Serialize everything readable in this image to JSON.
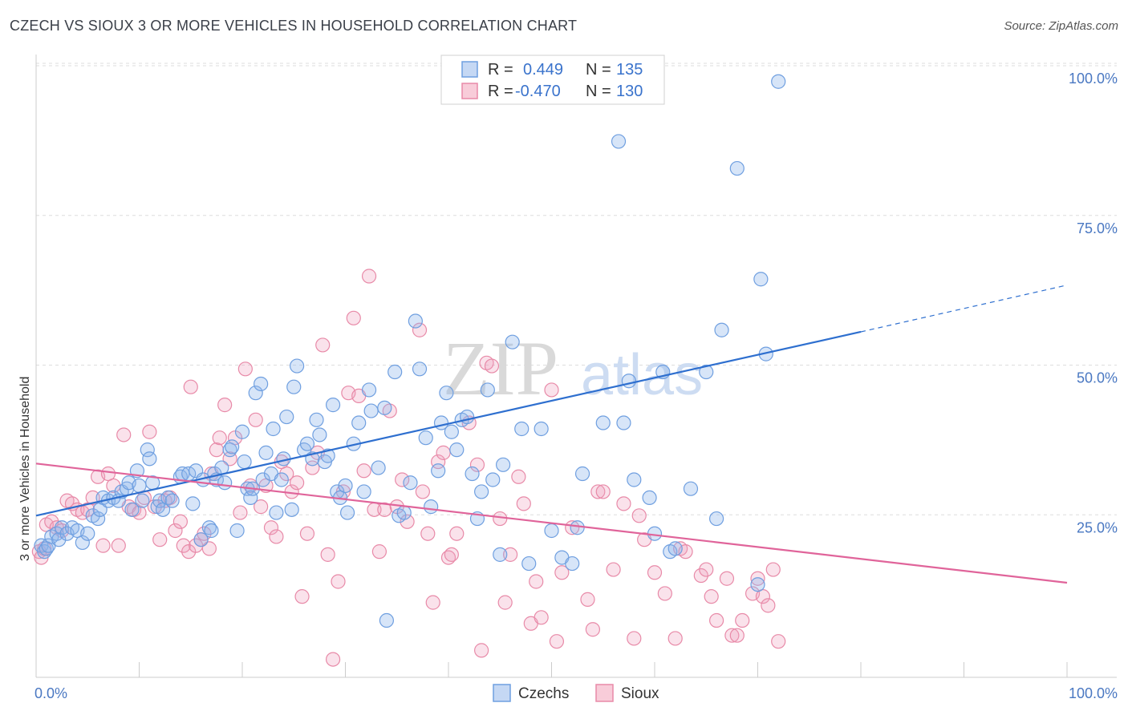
{
  "header": {
    "title": "CZECH VS SIOUX 3 OR MORE VEHICLES IN HOUSEHOLD CORRELATION CHART",
    "source": "Source: ZipAtlas.com"
  },
  "watermark": {
    "zip": "ZIP",
    "atlas": "atlas"
  },
  "legend": {
    "rows": [
      {
        "r_label": "R =",
        "r_value": "0.449",
        "n_label": "N =",
        "n_value": "135",
        "color": "#6f9fe0"
      },
      {
        "r_label": "R =",
        "r_value": "-0.470",
        "n_label": "N =",
        "n_value": "130",
        "color": "#e88aa8"
      }
    ]
  },
  "bottom_legend": [
    {
      "label": "Czechs",
      "color": "#6f9fe0"
    },
    {
      "label": "Sioux",
      "color": "#e88aa8"
    }
  ],
  "chart_data": {
    "type": "scatter",
    "title": "CZECH VS SIOUX 3 OR MORE VEHICLES IN HOUSEHOLD CORRELATION CHART",
    "ylabel": "3 or more Vehicles in Household",
    "xlabel": "",
    "xlim": [
      0,
      100
    ],
    "ylim": [
      0,
      102
    ],
    "x_tick_labels": [
      "0.0%",
      "100.0%"
    ],
    "y_ticks": [
      25,
      50,
      75,
      100
    ],
    "y_tick_labels": [
      "25.0%",
      "50.0%",
      "75.0%",
      "100.0%"
    ],
    "grid": "horizontal dashed",
    "legend_position": "top-center",
    "series": [
      {
        "name": "Czechs",
        "color": "#6f9fe0",
        "trend": {
          "x": [
            0,
            80,
            100
          ],
          "y": [
            27.0,
            57.7,
            65.5
          ],
          "dashed_from": 80
        },
        "points": [
          [
            0.5,
            22
          ],
          [
            0.8,
            21
          ],
          [
            1.0,
            21.5
          ],
          [
            1.2,
            22
          ],
          [
            1.5,
            23.5
          ],
          [
            2,
            24
          ],
          [
            2.2,
            23
          ],
          [
            2.5,
            25
          ],
          [
            3,
            24
          ],
          [
            3.5,
            25
          ],
          [
            4,
            24.5
          ],
          [
            4.5,
            22.5
          ],
          [
            5,
            24
          ],
          [
            5.5,
            27
          ],
          [
            6,
            26.5
          ],
          [
            6.2,
            28
          ],
          [
            6.5,
            30
          ],
          [
            7,
            29.5
          ],
          [
            7.5,
            30
          ],
          [
            8,
            29.5
          ],
          [
            8.3,
            31
          ],
          [
            8.8,
            31.5
          ],
          [
            9,
            32.5
          ],
          [
            9.3,
            28
          ],
          [
            9.8,
            34.5
          ],
          [
            10,
            32
          ],
          [
            10.3,
            29.5
          ],
          [
            10.8,
            38
          ],
          [
            11,
            36.5
          ],
          [
            11.3,
            32.5
          ],
          [
            11.8,
            28.5
          ],
          [
            12,
            29.5
          ],
          [
            12.3,
            28
          ],
          [
            12.8,
            30
          ],
          [
            13.2,
            29.5
          ],
          [
            14,
            33.5
          ],
          [
            14.2,
            34
          ],
          [
            14.8,
            34
          ],
          [
            15.2,
            29
          ],
          [
            15.5,
            34.5
          ],
          [
            16,
            23
          ],
          [
            16.2,
            33
          ],
          [
            16.8,
            25
          ],
          [
            17,
            24.5
          ],
          [
            17.3,
            34
          ],
          [
            17.5,
            33
          ],
          [
            18,
            35
          ],
          [
            18.3,
            32.5
          ],
          [
            18.8,
            38
          ],
          [
            19,
            38.5
          ],
          [
            19.5,
            24.5
          ],
          [
            20,
            41
          ],
          [
            20.2,
            36
          ],
          [
            20.5,
            31.5
          ],
          [
            20.8,
            30
          ],
          [
            21,
            31.5
          ],
          [
            21.3,
            47.5
          ],
          [
            21.8,
            49
          ],
          [
            22,
            33
          ],
          [
            22.3,
            37.5
          ],
          [
            22.8,
            34
          ],
          [
            23,
            41.5
          ],
          [
            23.3,
            27.5
          ],
          [
            23.8,
            33
          ],
          [
            24,
            36.5
          ],
          [
            24.3,
            43.5
          ],
          [
            24.8,
            28
          ],
          [
            25,
            48.5
          ],
          [
            25.3,
            52
          ],
          [
            26,
            38
          ],
          [
            26.3,
            39
          ],
          [
            26.8,
            36.5
          ],
          [
            27.2,
            43
          ],
          [
            27.5,
            40.5
          ],
          [
            28,
            36
          ],
          [
            28.3,
            37
          ],
          [
            28.8,
            45.5
          ],
          [
            29.2,
            31
          ],
          [
            29.5,
            30
          ],
          [
            30,
            32
          ],
          [
            30.2,
            27.5
          ],
          [
            30.8,
            39
          ],
          [
            31.3,
            42.5
          ],
          [
            31.8,
            31
          ],
          [
            32.3,
            48
          ],
          [
            32.5,
            44.5
          ],
          [
            33.2,
            35
          ],
          [
            33.8,
            45
          ],
          [
            34,
            9.5
          ],
          [
            34.8,
            51
          ],
          [
            35.2,
            27
          ],
          [
            35.7,
            27.5
          ],
          [
            36.3,
            32.5
          ],
          [
            36.8,
            59.5
          ],
          [
            37.2,
            51.5
          ],
          [
            37.8,
            40
          ],
          [
            38.3,
            28.5
          ],
          [
            39,
            34.5
          ],
          [
            39.3,
            42.5
          ],
          [
            39.8,
            47.5
          ],
          [
            40.3,
            41
          ],
          [
            40.8,
            38
          ],
          [
            41.3,
            43
          ],
          [
            41.8,
            43.5
          ],
          [
            42.3,
            34
          ],
          [
            42.8,
            26.5
          ],
          [
            43.2,
            31
          ],
          [
            43.8,
            48
          ],
          [
            44.3,
            33
          ],
          [
            45,
            20.5
          ],
          [
            45.3,
            35.5
          ],
          [
            46.2,
            56
          ],
          [
            47.1,
            41.5
          ],
          [
            47.8,
            19
          ],
          [
            49,
            41.5
          ],
          [
            50,
            24.5
          ],
          [
            51,
            20
          ],
          [
            52,
            19
          ],
          [
            52.5,
            25
          ],
          [
            53,
            34
          ],
          [
            55,
            42.5
          ],
          [
            56.5,
            89.5
          ],
          [
            57,
            42.5
          ],
          [
            57.5,
            49.5
          ],
          [
            58,
            33
          ],
          [
            59.5,
            30
          ],
          [
            60,
            24
          ],
          [
            60.8,
            51
          ],
          [
            61.5,
            21
          ],
          [
            62,
            21.5
          ],
          [
            63.5,
            31.5
          ],
          [
            65,
            51
          ],
          [
            66,
            26.5
          ],
          [
            66.5,
            58
          ],
          [
            68,
            85
          ],
          [
            70,
            15.5
          ],
          [
            70.3,
            66.5
          ],
          [
            70.8,
            54
          ],
          [
            72,
            99.5
          ]
        ]
      },
      {
        "name": "Sioux",
        "color": "#e88aa8",
        "trend": {
          "x": [
            0,
            100
          ],
          "y": [
            35.7,
            15.8
          ],
          "dashed_from": 100
        },
        "points": [
          [
            0.3,
            21
          ],
          [
            0.5,
            20
          ],
          [
            0.8,
            21.5
          ],
          [
            1,
            25.5
          ],
          [
            1.5,
            26
          ],
          [
            2,
            25
          ],
          [
            2.5,
            24.5
          ],
          [
            3,
            29.5
          ],
          [
            3.5,
            29
          ],
          [
            4,
            28
          ],
          [
            4.5,
            27.5
          ],
          [
            5,
            28
          ],
          [
            5.5,
            30
          ],
          [
            6,
            33.5
          ],
          [
            6.5,
            22
          ],
          [
            7,
            34
          ],
          [
            7.5,
            32
          ],
          [
            8,
            22
          ],
          [
            8.5,
            40.5
          ],
          [
            9,
            28.5
          ],
          [
            9.5,
            28
          ],
          [
            10,
            27.5
          ],
          [
            10.5,
            30
          ],
          [
            11,
            41
          ],
          [
            11.5,
            28.5
          ],
          [
            12,
            23
          ],
          [
            12.5,
            29.5
          ],
          [
            13,
            30
          ],
          [
            13.5,
            24.5
          ],
          [
            14,
            26
          ],
          [
            14.3,
            22
          ],
          [
            14.8,
            21
          ],
          [
            15,
            48.5
          ],
          [
            15.5,
            22
          ],
          [
            16,
            23
          ],
          [
            16.3,
            24
          ],
          [
            16.8,
            21.5
          ],
          [
            17,
            34
          ],
          [
            17.5,
            38
          ],
          [
            17.8,
            40
          ],
          [
            18.3,
            45.5
          ],
          [
            18.8,
            36.5
          ],
          [
            19.3,
            40
          ],
          [
            19.8,
            27.5
          ],
          [
            20.3,
            51.5
          ],
          [
            20.8,
            32
          ],
          [
            21.3,
            43
          ],
          [
            21.8,
            28.5
          ],
          [
            22.3,
            32
          ],
          [
            22.8,
            25
          ],
          [
            23.3,
            23.5
          ],
          [
            23.8,
            36
          ],
          [
            24.3,
            34
          ],
          [
            24.8,
            31
          ],
          [
            25.3,
            32.5
          ],
          [
            25.8,
            13.5
          ],
          [
            26.3,
            24
          ],
          [
            26.8,
            35
          ],
          [
            27.3,
            37.5
          ],
          [
            27.8,
            55.5
          ],
          [
            28.3,
            20.5
          ],
          [
            28.8,
            3
          ],
          [
            29.3,
            16
          ],
          [
            29.8,
            31
          ],
          [
            30.3,
            47.5
          ],
          [
            30.8,
            60
          ],
          [
            31.3,
            47
          ],
          [
            31.8,
            34.5
          ],
          [
            32.3,
            67
          ],
          [
            32.8,
            28
          ],
          [
            33.3,
            21
          ],
          [
            33.8,
            28
          ],
          [
            34.3,
            44.5
          ],
          [
            35,
            28.5
          ],
          [
            35.5,
            33
          ],
          [
            36,
            26
          ],
          [
            37.2,
            58
          ],
          [
            37.5,
            31
          ],
          [
            38,
            24
          ],
          [
            38.5,
            12.5
          ],
          [
            39,
            36
          ],
          [
            39.5,
            37.5
          ],
          [
            40,
            20
          ],
          [
            40.3,
            20.5
          ],
          [
            40.8,
            24
          ],
          [
            42,
            42.5
          ],
          [
            42.8,
            35.5
          ],
          [
            43.2,
            4.5
          ],
          [
            43.7,
            52.5
          ],
          [
            44.2,
            52
          ],
          [
            45,
            26.5
          ],
          [
            45.5,
            12.5
          ],
          [
            46,
            20.5
          ],
          [
            46.8,
            33.5
          ],
          [
            47.3,
            29
          ],
          [
            48,
            9
          ],
          [
            48.5,
            16
          ],
          [
            49,
            10
          ],
          [
            50,
            48
          ],
          [
            50.5,
            6
          ],
          [
            51,
            17.5
          ],
          [
            52,
            25
          ],
          [
            53.5,
            13
          ],
          [
            54,
            8
          ],
          [
            54.5,
            31
          ],
          [
            55,
            31
          ],
          [
            56,
            18
          ],
          [
            57,
            29
          ],
          [
            58,
            6.5
          ],
          [
            58.5,
            27
          ],
          [
            59,
            23
          ],
          [
            60,
            17.5
          ],
          [
            61,
            14
          ],
          [
            62,
            6.5
          ],
          [
            62.5,
            21.5
          ],
          [
            63,
            21
          ],
          [
            64.5,
            17
          ],
          [
            65,
            18
          ],
          [
            65.5,
            13.5
          ],
          [
            66,
            9.5
          ],
          [
            67,
            16.5
          ],
          [
            67.5,
            7
          ],
          [
            68,
            7
          ],
          [
            68.5,
            9.5
          ],
          [
            69.5,
            14
          ],
          [
            70,
            16.5
          ],
          [
            70.5,
            13.5
          ],
          [
            71,
            12
          ],
          [
            71.5,
            18
          ],
          [
            72,
            6
          ]
        ]
      }
    ]
  }
}
